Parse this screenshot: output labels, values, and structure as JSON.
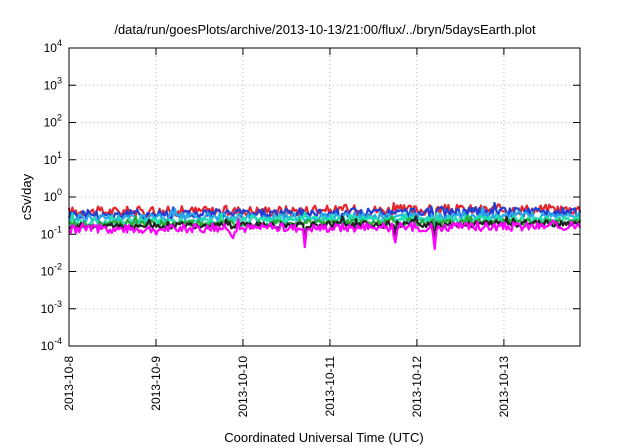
{
  "chart_data": {
    "type": "line",
    "title": "/data/run/goesPlots/archive/2013-10-13/21:00/flux/../bryn/5daysEarth.plot",
    "xlabel": "Coordinated Universal Time (UTC)",
    "ylabel": "cSv/day",
    "y_scale": "log",
    "ylim": [
      0.0001,
      10000
    ],
    "xlim": [
      "2013-10-08",
      "2013-10-13 21:00"
    ],
    "grid": true,
    "x_ticks": [
      "2013-10-8",
      "2013-10-9",
      "2013-10-10",
      "2013-10-11",
      "2013-10-12",
      "2013-10-13"
    ],
    "y_ticks": [
      {
        "base": "10",
        "exp": "-4"
      },
      {
        "base": "10",
        "exp": "-3"
      },
      {
        "base": "10",
        "exp": "-2"
      },
      {
        "base": "10",
        "exp": "-1"
      },
      {
        "base": "10",
        "exp": "0"
      },
      {
        "base": "10",
        "exp": "1"
      },
      {
        "base": "10",
        "exp": "2"
      },
      {
        "base": "10",
        "exp": "3"
      },
      {
        "base": "10",
        "exp": "4"
      }
    ],
    "series": [
      {
        "color": "#e8252b",
        "level": 0.4,
        "noise": 0.14
      },
      {
        "color": "#1f3fd6",
        "level": 0.34,
        "noise": 0.13
      },
      {
        "color": "#2aa7e8",
        "level": 0.27,
        "noise": 0.11
      },
      {
        "color": "#1fe0b0",
        "level": 0.22,
        "noise": 0.1
      },
      {
        "color": "#2aa838",
        "level": 0.185,
        "noise": 0.09
      },
      {
        "color": "#222222",
        "level": 0.165,
        "noise": 0.09
      },
      {
        "color": "#ff00ff",
        "level": 0.14,
        "noise": 0.12
      }
    ],
    "dips": [
      {
        "x": "2013-10-10 17:00",
        "value": 0.045
      },
      {
        "x": "2013-10-09 00:00",
        "value": 0.1
      },
      {
        "x": "2013-10-09 21:00",
        "value": 0.09
      },
      {
        "x": "2013-10-11 18:00",
        "value": 0.06
      },
      {
        "x": "2013-10-12 05:00",
        "value": 0.04
      }
    ]
  }
}
